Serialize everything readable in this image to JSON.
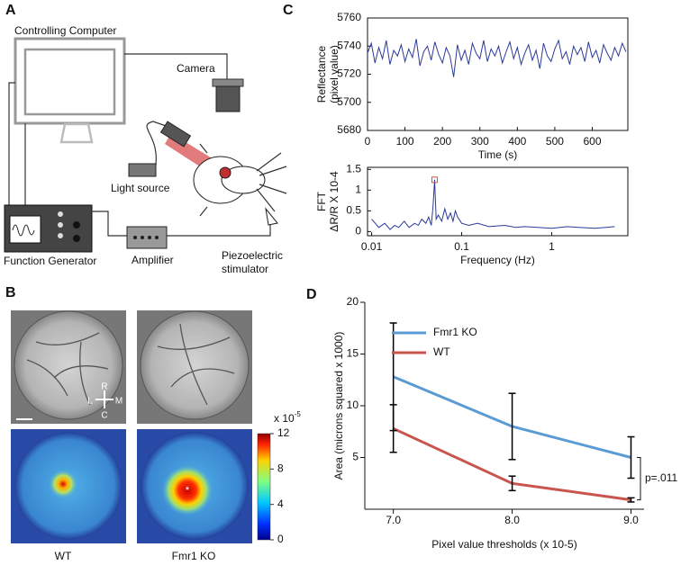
{
  "panel_labels": [
    "A",
    "B",
    "C",
    "D"
  ],
  "panel_a": {
    "computer": "Controlling Computer",
    "camera": "Camera",
    "light_source": "Light source",
    "function_generator": "Function Generator",
    "amplifier": "Amplifier",
    "stimulator": [
      "Piezoelectric",
      "stimulator"
    ]
  },
  "panel_b": {
    "image_labels": [
      "WT",
      "Fmr1 KO"
    ],
    "orientation": {
      "rostral": "R",
      "lateral": "L",
      "medial": "M",
      "caudal": "C"
    },
    "colorbar_scale": "x 10",
    "colorbar_exponent": "-5",
    "colorbar_range": [
      0,
      12
    ],
    "colorbar_ticks": [
      12,
      8,
      4,
      0
    ]
  },
  "chart_data": [
    {
      "type": "line",
      "ylabel": [
        "Reflectance",
        "(pixel value)"
      ],
      "xlabel": "Time (s)",
      "color": "#2b3a9b",
      "x": [
        0,
        10,
        20,
        30,
        40,
        50,
        60,
        70,
        80,
        90,
        100,
        110,
        120,
        130,
        140,
        150,
        160,
        170,
        180,
        190,
        200,
        210,
        220,
        230,
        240,
        250,
        260,
        270,
        280,
        290,
        300,
        310,
        320,
        330,
        340,
        350,
        360,
        370,
        380,
        390,
        400,
        410,
        420,
        430,
        440,
        450,
        460,
        470,
        480,
        490,
        500,
        510,
        520,
        530,
        540,
        550,
        560,
        570,
        580,
        590,
        600,
        610,
        620,
        630,
        640,
        650,
        660,
        670,
        680,
        690
      ],
      "values": [
        5735,
        5742,
        5728,
        5739,
        5731,
        5744,
        5727,
        5737,
        5733,
        5741,
        5729,
        5738,
        5732,
        5745,
        5726,
        5736,
        5740,
        5730,
        5743,
        5734,
        5728,
        5739,
        5733,
        5718,
        5741,
        5730,
        5737,
        5727,
        5742,
        5735,
        5731,
        5744,
        5729,
        5738,
        5733,
        5740,
        5728,
        5736,
        5743,
        5731,
        5739,
        5727,
        5735,
        5741,
        5730,
        5737,
        5724,
        5742,
        5733,
        5729,
        5738,
        5744,
        5731,
        5736,
        5727,
        5740,
        5734,
        5739,
        5729,
        5743,
        5732,
        5737,
        5728,
        5741,
        5735,
        5730,
        5739,
        5733,
        5742,
        5736
      ],
      "xlim": [
        0,
        695
      ],
      "xticks": [
        0,
        100,
        200,
        300,
        400,
        500,
        600
      ],
      "ylim": [
        5680,
        5760
      ],
      "yticks": [
        5680,
        5700,
        5720,
        5740,
        5760
      ]
    },
    {
      "type": "line",
      "log_x": true,
      "ylabel": [
        "FFT",
        "ΔR/R X 10-4"
      ],
      "xlabel": "Frequency (Hz)",
      "color": "#2b3a9b",
      "x": [
        0.01,
        0.012,
        0.014,
        0.016,
        0.018,
        0.02,
        0.023,
        0.026,
        0.03,
        0.033,
        0.036,
        0.04,
        0.043,
        0.046,
        0.048,
        0.05,
        0.052,
        0.055,
        0.06,
        0.065,
        0.07,
        0.075,
        0.08,
        0.085,
        0.09,
        0.1,
        0.12,
        0.15,
        0.2,
        0.3,
        0.4,
        0.5,
        0.7,
        1,
        1.5,
        2,
        3,
        4,
        5
      ],
      "values": [
        0.3,
        0.1,
        0.2,
        0.05,
        0.15,
        0.1,
        0.25,
        0.1,
        0.2,
        0.15,
        0.3,
        0.2,
        0.35,
        0.15,
        0.6,
        1.25,
        0.3,
        0.4,
        0.25,
        0.55,
        0.3,
        0.45,
        0.25,
        0.5,
        0.35,
        0.2,
        0.15,
        0.2,
        0.12,
        0.15,
        0.1,
        0.12,
        0.1,
        0.08,
        0.12,
        0.1,
        0.08,
        0.1,
        0.12
      ],
      "highlight": {
        "x": 0.05,
        "y": 1.25,
        "color": "#e04848"
      },
      "xlim": [
        0.009,
        7
      ],
      "xticks": [
        0.01,
        0.1,
        1
      ],
      "ylim": [
        -0.1,
        1.55
      ],
      "yticks": [
        0,
        0.5,
        1,
        1.5
      ]
    },
    {
      "type": "errorline",
      "ylabel": "Area (microns squared x 1000)",
      "xlabel": "Pixel value thresholds (x 10-5)",
      "x": [
        7,
        8,
        9
      ],
      "series": [
        {
          "name": "Fmr1 KO",
          "color": "#5b9bd5",
          "values": [
            12.8,
            8.0,
            5.0
          ],
          "errors": [
            5.2,
            3.2,
            2.0
          ]
        },
        {
          "name": "WT",
          "color": "#c9544d",
          "values": [
            7.8,
            2.5,
            0.9
          ],
          "errors": [
            2.3,
            0.7,
            0.2
          ]
        }
      ],
      "annotation": "p=.011",
      "xlim": [
        6.76,
        9.11
      ],
      "xticks": [
        {
          "value": 7,
          "label": "7.0"
        },
        {
          "value": 8,
          "label": "8.0"
        },
        {
          "value": 9,
          "label": "9.0"
        }
      ],
      "ylim": [
        0,
        20
      ],
      "yticks": [
        5,
        10,
        15,
        20
      ]
    }
  ]
}
